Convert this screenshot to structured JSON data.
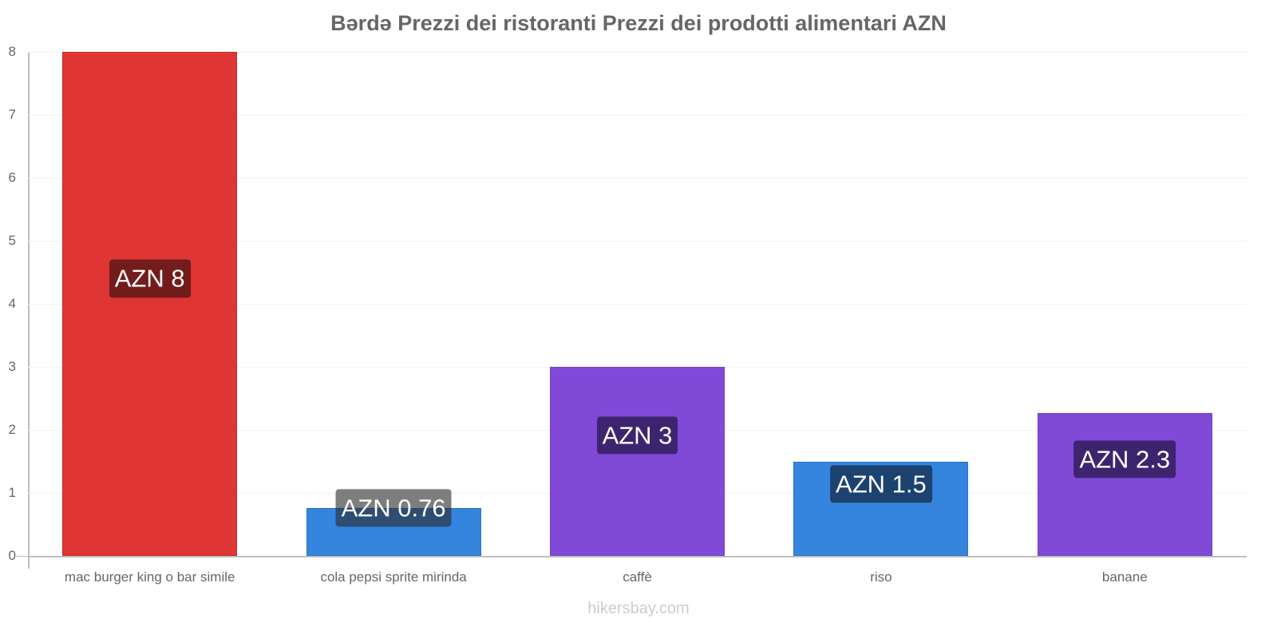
{
  "chart_data": {
    "type": "bar",
    "title": "Bərdə Prezzi dei ristoranti Prezzi dei prodotti alimentari AZN",
    "categories": [
      "mac burger king o bar simile",
      "cola pepsi sprite mirinda",
      "caffè",
      "riso",
      "banane"
    ],
    "values": [
      8,
      0.76,
      3,
      1.5,
      2.27
    ],
    "value_labels": [
      "AZN 8",
      "AZN 0.76",
      "AZN 3",
      "AZN 1.5",
      "AZN 2.3"
    ],
    "bar_colors": [
      "#e03535",
      "#3584de",
      "#8049d8",
      "#3584de",
      "#8049d8"
    ],
    "label_colors": [
      "#731c1c",
      "#1c4270",
      "#3e246e",
      "#1c4270",
      "#3e246e"
    ],
    "xlabel": "",
    "ylabel": "",
    "ylim": [
      0,
      8
    ],
    "yticks": [
      "0",
      "1",
      "2",
      "3",
      "4",
      "5",
      "6",
      "7",
      "8"
    ],
    "grid": true,
    "legend": null
  },
  "watermark": "hikersbay.com"
}
